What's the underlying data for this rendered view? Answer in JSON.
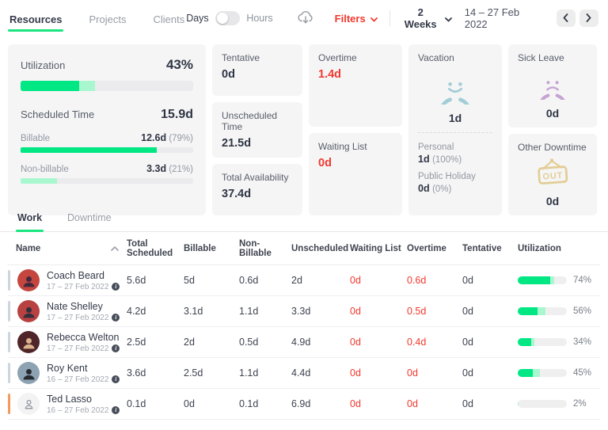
{
  "header": {
    "tabs": [
      {
        "label": "Resources"
      },
      {
        "label": "Projects"
      },
      {
        "label": "Clients"
      }
    ],
    "view_toggle": {
      "left_label": "Days",
      "right_label": "Hours"
    },
    "filters_label": "Filters",
    "period_label": "2 Weeks",
    "date_range": "14 – 27 Feb 2022"
  },
  "stats": {
    "utilization": {
      "label": "Utilization",
      "value": "43%",
      "bar_bright": 34,
      "bar_light": 9
    },
    "scheduled_time": {
      "label": "Scheduled Time",
      "value": "15.9d",
      "billable": {
        "label": "Billable",
        "value": "12.6d",
        "pct": "(79%)",
        "bar": 79
      },
      "non_billable": {
        "label": "Non-billable",
        "value": "3.3d",
        "pct": "(21%)",
        "bar": 21
      }
    },
    "tentative": {
      "label": "Tentative",
      "value": "0d"
    },
    "unscheduled_time": {
      "label": "Unscheduled Time",
      "value": "21.5d"
    },
    "total_availability": {
      "label": "Total Availability",
      "value": "37.4d"
    },
    "overtime": {
      "label": "Overtime",
      "value": "1.4d"
    },
    "waiting_list": {
      "label": "Waiting List",
      "value": "0d"
    },
    "vacation": {
      "label": "Vacation",
      "value": "1d",
      "personal": {
        "label": "Personal",
        "value": "1d",
        "pct": "(100%)"
      },
      "public_holiday": {
        "label": "Public Holiday",
        "value": "0d",
        "pct": "(0%)"
      }
    },
    "sick_leave": {
      "label": "Sick Leave",
      "value": "0d"
    },
    "other_downtime": {
      "label": "Other Downtime",
      "value": "0d",
      "sign_text": "OUT"
    }
  },
  "work_section": {
    "tabs": [
      {
        "label": "Work"
      },
      {
        "label": "Downtime"
      }
    ]
  },
  "table": {
    "columns": [
      "Name",
      "Total Scheduled",
      "Billable",
      "Non-Billable",
      "Unscheduled",
      "Waiting List",
      "Overtime",
      "Tentative",
      "Utilization"
    ],
    "rows": [
      {
        "name": "Coach Beard",
        "dates": "17 – 27 Feb 2022",
        "total_scheduled": "5.6d",
        "billable": "5d",
        "non_billable": "0.6d",
        "unscheduled": "2d",
        "waiting_list": "0d",
        "overtime": "0.6d",
        "tentative": "0d",
        "utilization": "74%",
        "bar_bright": 66,
        "bar_light": 8,
        "accent": "#cdd6df",
        "avatar_bg": "#c5463e",
        "avatar_fg": "#44283f"
      },
      {
        "name": "Nate Shelley",
        "dates": "17 – 27 Feb 2022",
        "total_scheduled": "4.2d",
        "billable": "3.1d",
        "non_billable": "1.1d",
        "unscheduled": "3.3d",
        "waiting_list": "0d",
        "overtime": "0.5d",
        "tentative": "0d",
        "utilization": "56%",
        "bar_bright": 41,
        "bar_light": 15,
        "accent": "#cdd6df",
        "avatar_bg": "#b84141",
        "avatar_fg": "#32303c"
      },
      {
        "name": "Rebecca Welton",
        "dates": "17 – 27 Feb 2022",
        "total_scheduled": "2.5d",
        "billable": "2d",
        "non_billable": "0.5d",
        "unscheduled": "4.9d",
        "waiting_list": "0d",
        "overtime": "0.4d",
        "tentative": "0d",
        "utilization": "34%",
        "bar_bright": 27,
        "bar_light": 7,
        "accent": "#cdd6df",
        "avatar_bg": "#502529",
        "avatar_fg": "#d9b48c"
      },
      {
        "name": "Roy Kent",
        "dates": "16 – 27 Feb 2022",
        "total_scheduled": "3.6d",
        "billable": "2.5d",
        "non_billable": "1.1d",
        "unscheduled": "4.4d",
        "waiting_list": "0d",
        "overtime": "0d",
        "tentative": "0d",
        "utilization": "45%",
        "bar_bright": 31,
        "bar_light": 14,
        "accent": "#cdd6df",
        "avatar_bg": "#8da2b2",
        "avatar_fg": "#272b31"
      },
      {
        "name": "Ted Lasso",
        "dates": "16 – 27 Feb 2022",
        "total_scheduled": "0.1d",
        "billable": "0d",
        "non_billable": "0.1d",
        "unscheduled": "6.9d",
        "waiting_list": "0d",
        "overtime": "0d",
        "tentative": "0d",
        "utilization": "2%",
        "bar_bright": 0,
        "bar_light": 2,
        "accent": "#f49a5f",
        "avatar_bg": "#f3f3f4",
        "avatar_fg": "#8d939c"
      }
    ]
  },
  "colors": {
    "accent_green": "#00e784",
    "light_green": "#a9f7cf",
    "alert_red": "#f2382e",
    "bar_track": "#efeff0",
    "card_bg": "#f5f5f6",
    "vacation_icon": "#a3cdd6",
    "sick_icon": "#c7a3d2",
    "downtime_icon": "#e3cd96",
    "row_accent": "#cdd6df",
    "row_accent_warning": "#f49a5f"
  }
}
